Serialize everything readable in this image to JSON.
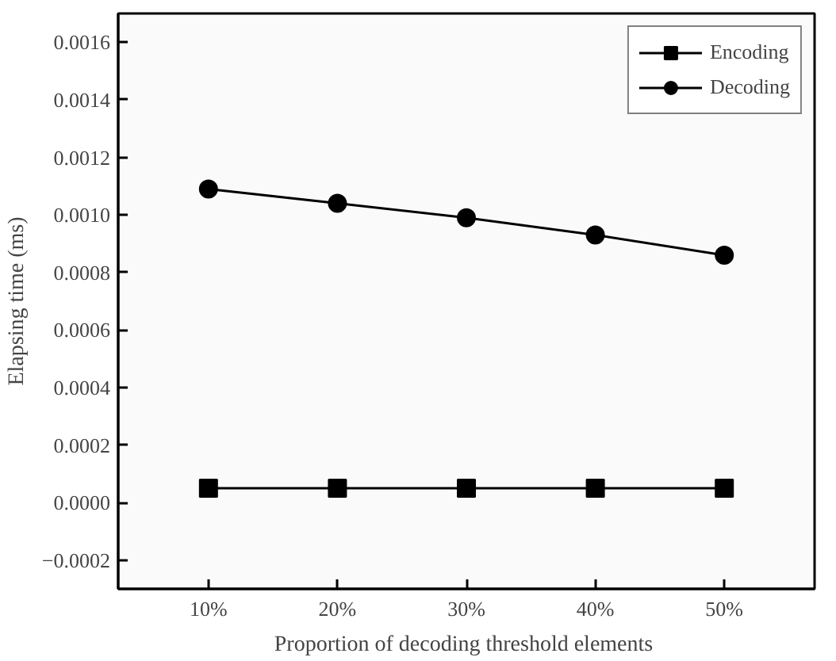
{
  "chart_data": {
    "type": "line",
    "xlabel": "Proportion of  decoding threshold elements",
    "ylabel": "Elapsing time (ms)",
    "categories": [
      "10%",
      "20%",
      "30%",
      "40%",
      "50%"
    ],
    "series": [
      {
        "name": "Encoding",
        "color": "#000000",
        "marker": "square",
        "values": [
          5e-05,
          5e-05,
          5e-05,
          5e-05,
          5e-05
        ]
      },
      {
        "name": "Decoding",
        "color": "#000000",
        "marker": "circle",
        "values": [
          0.00109,
          0.00104,
          0.00099,
          0.00093,
          0.00086
        ]
      }
    ],
    "ylim": [
      -0.0003,
      0.0017
    ],
    "yticks": [
      {
        "value": -0.0002,
        "label": "−0.0002"
      },
      {
        "value": 0,
        "label": "0.0000"
      },
      {
        "value": 0.0002,
        "label": "0.0002"
      },
      {
        "value": 0.0004,
        "label": "0.0004"
      },
      {
        "value": 0.0006,
        "label": "0.0006"
      },
      {
        "value": 0.0008,
        "label": "0.0008"
      },
      {
        "value": 0.001,
        "label": "0.0010"
      },
      {
        "value": 0.0012,
        "label": "0.0012"
      },
      {
        "value": 0.0014,
        "label": "0.0014"
      },
      {
        "value": 0.0016,
        "label": "0.0016"
      }
    ],
    "legend": "top right",
    "grid": false,
    "line_style": "solid"
  }
}
